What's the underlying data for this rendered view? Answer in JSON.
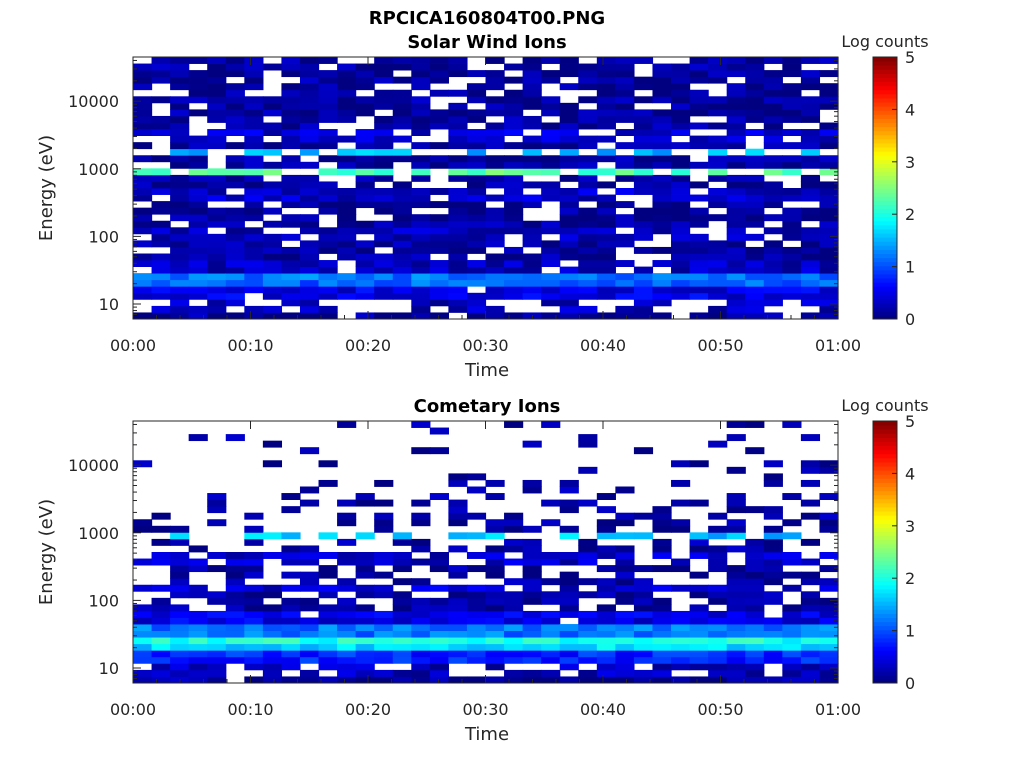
{
  "figure_title": "RPCICA160804T00.PNG",
  "chart_data": [
    {
      "type": "heatmap",
      "title": "Solar Wind Ions",
      "xlabel": "Time",
      "ylabel": "Energy (eV)",
      "x_ticks": [
        "00:00",
        "00:10",
        "00:20",
        "00:30",
        "00:40",
        "00:50",
        "01:00"
      ],
      "xlim_minutes": [
        0,
        60
      ],
      "y_scale": "log",
      "y_ticks": [
        10,
        100,
        1000,
        10000
      ],
      "y_tick_labels": [
        "10",
        "100",
        "1000",
        "10000"
      ],
      "ylim": [
        6,
        45000
      ],
      "colorbar": {
        "label": "Log counts",
        "range": [
          0,
          5
        ],
        "ticks": [
          "0",
          "1",
          "2",
          "3",
          "4",
          "5"
        ],
        "colormap": "jet"
      },
      "time_bins": 38,
      "energy_bands": [
        {
          "energy_eV": 9.5,
          "log_counts": 0.3,
          "coverage": 0.5
        },
        {
          "energy_eV": 15,
          "log_counts": 0.5,
          "coverage": 0.95
        },
        {
          "energy_eV": 19,
          "log_counts": 1.1,
          "coverage": 1.0
        },
        {
          "energy_eV": 23,
          "log_counts": 1.5,
          "coverage": 1.0
        },
        {
          "energy_eV": 27,
          "log_counts": 1.2,
          "coverage": 1.0
        },
        {
          "energy_eV": 35,
          "log_counts": 0.3,
          "coverage": 0.9
        },
        {
          "energy_eV": 100,
          "log_counts": 0.3,
          "coverage": 0.8
        },
        {
          "energy_eV": 450,
          "log_counts": 0.35,
          "coverage": 0.85
        },
        {
          "energy_eV": 900,
          "log_counts": 2.3,
          "coverage": 0.6
        },
        {
          "energy_eV": 1800,
          "log_counts": 1.5,
          "coverage": 0.5
        },
        {
          "energy_eV": 3000,
          "log_counts": 0.4,
          "coverage": 0.8
        },
        {
          "energy_eV": 15000,
          "log_counts": 0.1,
          "coverage": 0.7
        }
      ]
    },
    {
      "type": "heatmap",
      "title": "Cometary Ions",
      "xlabel": "Time",
      "ylabel": "Energy (eV)",
      "x_ticks": [
        "00:00",
        "00:10",
        "00:20",
        "00:30",
        "00:40",
        "00:50",
        "01:00"
      ],
      "xlim_minutes": [
        0,
        60
      ],
      "y_scale": "log",
      "y_ticks": [
        10,
        100,
        1000,
        10000
      ],
      "y_tick_labels": [
        "10",
        "100",
        "1000",
        "10000"
      ],
      "ylim": [
        6,
        45000
      ],
      "colorbar": {
        "label": "Log counts",
        "range": [
          0,
          5
        ],
        "ticks": [
          "0",
          "1",
          "2",
          "3",
          "4",
          "5"
        ],
        "colormap": "jet"
      },
      "time_bins": 38,
      "energy_bands": [
        {
          "energy_eV": 9.5,
          "log_counts": 0.3,
          "coverage": 0.6
        },
        {
          "energy_eV": 15,
          "log_counts": 0.8,
          "coverage": 1.0
        },
        {
          "energy_eV": 19,
          "log_counts": 1.7,
          "coverage": 1.0
        },
        {
          "energy_eV": 23,
          "log_counts": 2.2,
          "coverage": 1.0
        },
        {
          "energy_eV": 28,
          "log_counts": 2.0,
          "coverage": 1.0
        },
        {
          "energy_eV": 35,
          "log_counts": 1.2,
          "coverage": 1.0
        },
        {
          "energy_eV": 60,
          "log_counts": 0.5,
          "coverage": 0.95
        },
        {
          "energy_eV": 150,
          "log_counts": 0.4,
          "coverage": 0.85
        },
        {
          "energy_eV": 450,
          "log_counts": 0.35,
          "coverage": 0.75
        },
        {
          "energy_eV": 900,
          "log_counts": 1.6,
          "coverage": 0.6
        },
        {
          "energy_eV": 3000,
          "log_counts": 0.2,
          "coverage": 0.3
        },
        {
          "energy_eV": 15000,
          "log_counts": 0.1,
          "coverage": 0.15
        }
      ]
    }
  ]
}
